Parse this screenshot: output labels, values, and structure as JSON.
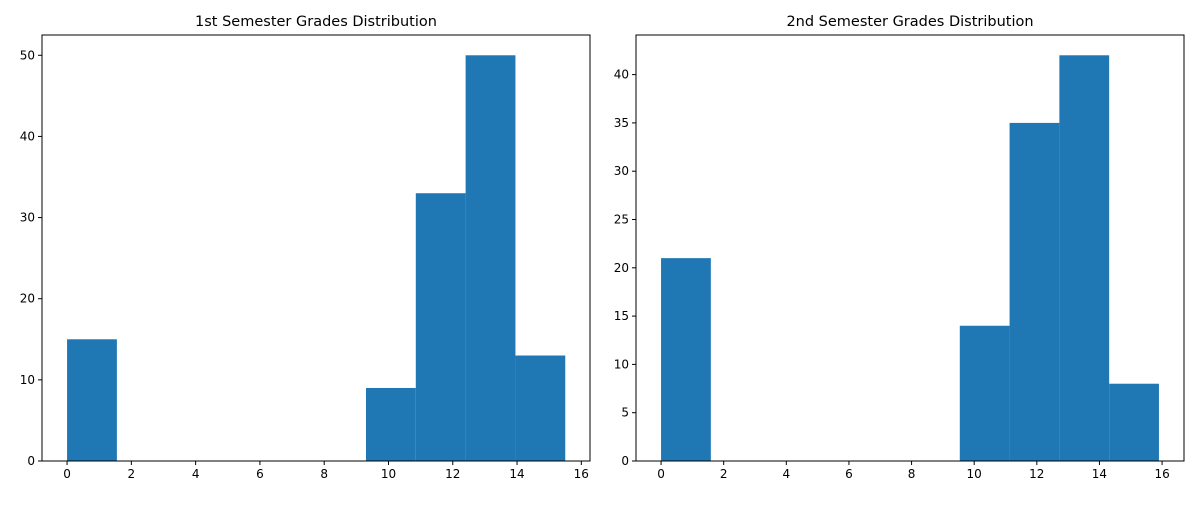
{
  "chart_data": [
    {
      "type": "bar",
      "title": "1st Semester Grades Distribution",
      "xlabel": "",
      "ylabel": "",
      "xlim": [
        -0.78,
        16.27
      ],
      "ylim": [
        0,
        52.5
      ],
      "xticks": [
        0,
        2,
        4,
        6,
        8,
        10,
        12,
        14,
        16
      ],
      "yticks": [
        0,
        10,
        20,
        30,
        40,
        50
      ],
      "bin_edges": [
        0.0,
        1.55,
        3.1,
        4.65,
        6.2,
        7.75,
        9.3,
        10.85,
        12.4,
        13.95,
        15.5
      ],
      "values": [
        15,
        0,
        0,
        0,
        0,
        0,
        9,
        33,
        50,
        13
      ],
      "bar_color": "#1f77b4",
      "grid": false
    },
    {
      "type": "bar",
      "title": "2nd Semester Grades Distribution",
      "xlabel": "",
      "ylabel": "",
      "xlim": [
        -0.8,
        16.7
      ],
      "ylim": [
        0,
        44.1
      ],
      "xticks": [
        0,
        2,
        4,
        6,
        8,
        10,
        12,
        14,
        16
      ],
      "yticks": [
        0,
        5,
        10,
        15,
        20,
        25,
        30,
        35,
        40
      ],
      "bin_edges": [
        0.0,
        1.59,
        3.18,
        4.77,
        6.36,
        7.95,
        9.54,
        11.13,
        12.72,
        14.31,
        15.9
      ],
      "values": [
        21,
        0,
        0,
        0,
        0,
        0,
        14,
        35,
        42,
        8
      ],
      "bar_color": "#1f77b4",
      "grid": false
    }
  ]
}
